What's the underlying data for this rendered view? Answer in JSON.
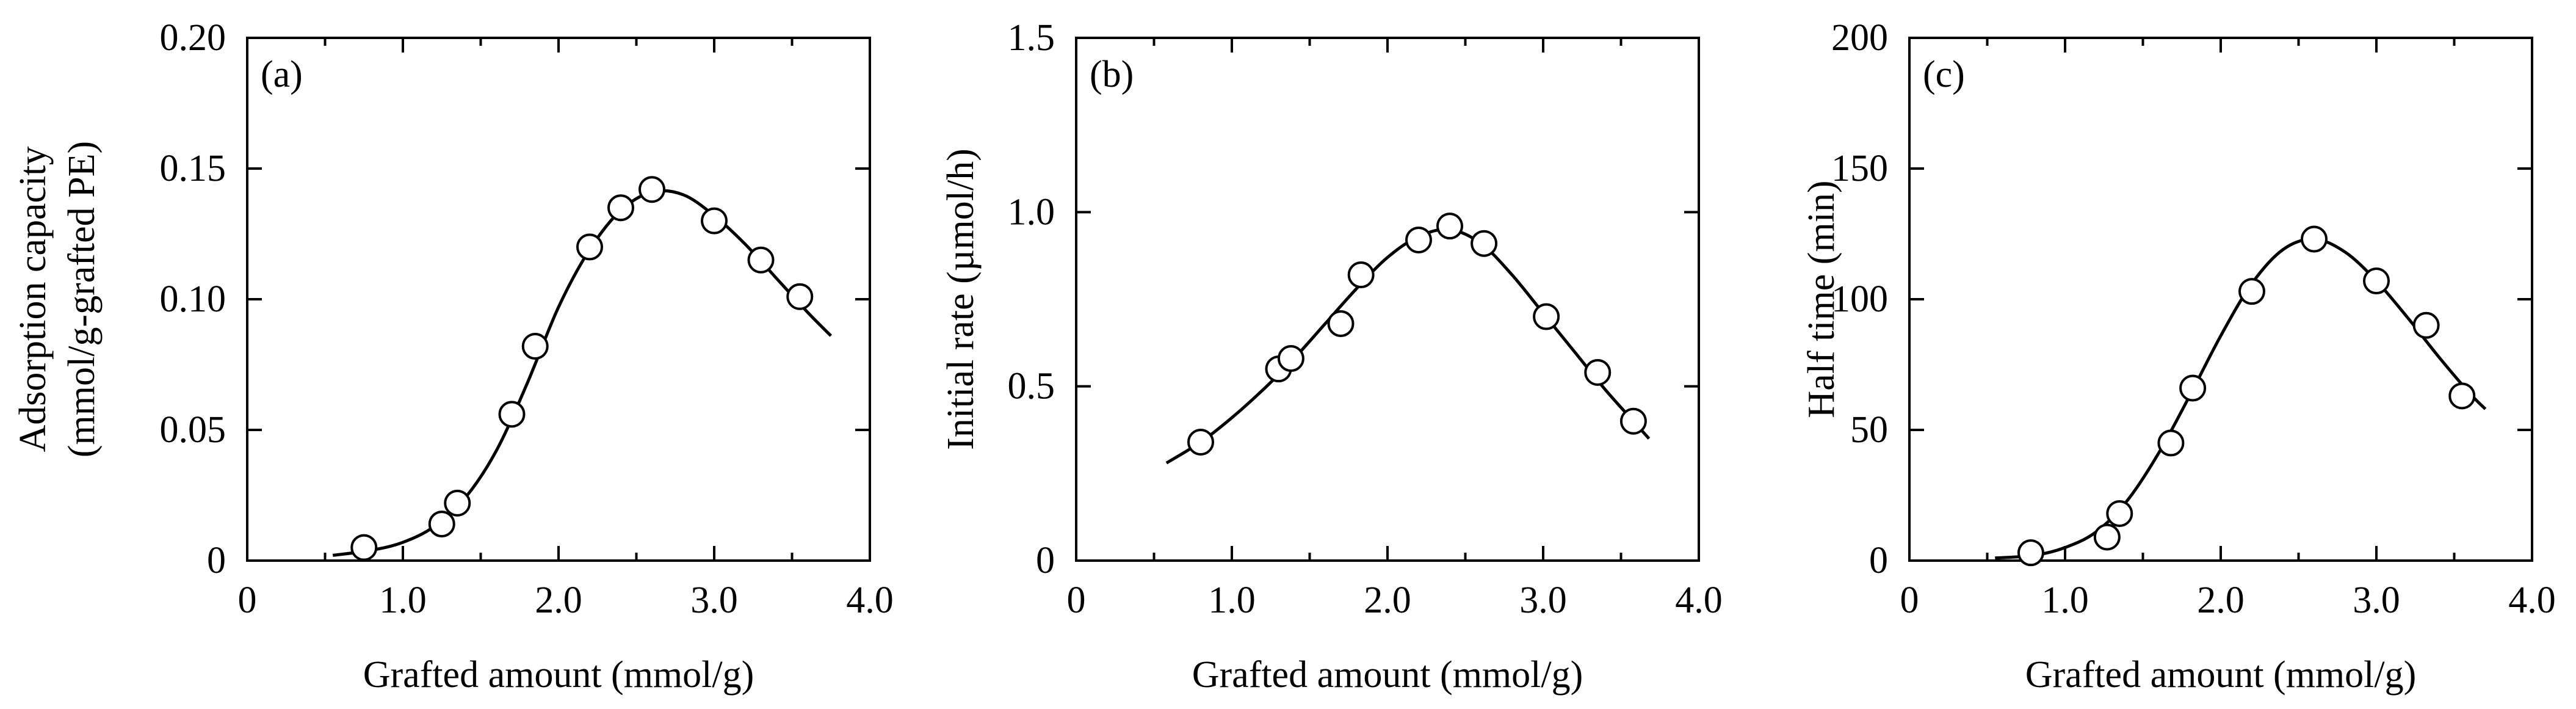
{
  "chart_data": [
    {
      "type": "scatter",
      "panel_label": "(a)",
      "xlabel": "Grafted amount (mmol/g)",
      "ylabel_lines": [
        "Adsorption capacity",
        "(mmol/g-grafted PE)"
      ],
      "xlim": [
        0,
        4.0
      ],
      "ylim": [
        0,
        0.2
      ],
      "x_ticks": [
        "0",
        "1.0",
        "2.0",
        "3.0",
        "4.0"
      ],
      "y_ticks": [
        "0",
        "0.05",
        "0.10",
        "0.15",
        "0.20"
      ],
      "points": {
        "x": [
          0.75,
          1.25,
          1.35,
          1.7,
          1.85,
          2.2,
          2.4,
          2.6,
          3.0,
          3.3,
          3.55
        ],
        "y": [
          0.005,
          0.014,
          0.022,
          0.056,
          0.082,
          0.12,
          0.135,
          0.142,
          0.13,
          0.115,
          0.101
        ]
      },
      "fit_curve": {
        "x": [
          0.55,
          0.8,
          1.0,
          1.2,
          1.4,
          1.6,
          1.8,
          2.0,
          2.2,
          2.4,
          2.6,
          2.8,
          3.0,
          3.2,
          3.4,
          3.6,
          3.75
        ],
        "y": [
          0.002,
          0.004,
          0.007,
          0.013,
          0.024,
          0.042,
          0.068,
          0.097,
          0.119,
          0.134,
          0.141,
          0.14,
          0.132,
          0.121,
          0.108,
          0.095,
          0.086
        ]
      }
    },
    {
      "type": "scatter",
      "panel_label": "(b)",
      "xlabel": "Grafted amount (mmol/g)",
      "ylabel_lines": [
        "Initial rate (µmol/h)"
      ],
      "xlim": [
        0,
        4.0
      ],
      "ylim": [
        0,
        1.5
      ],
      "x_ticks": [
        "0",
        "1.0",
        "2.0",
        "3.0",
        "4.0"
      ],
      "y_ticks": [
        "0",
        "0.5",
        "1.0",
        "1.5"
      ],
      "points": {
        "x": [
          0.8,
          1.3,
          1.38,
          1.7,
          1.83,
          2.2,
          2.4,
          2.62,
          3.02,
          3.35,
          3.58
        ],
        "y": [
          0.34,
          0.55,
          0.58,
          0.68,
          0.82,
          0.92,
          0.96,
          0.91,
          0.7,
          0.54,
          0.4
        ]
      },
      "fit_curve": {
        "x": [
          0.58,
          0.8,
          1.0,
          1.2,
          1.4,
          1.6,
          1.8,
          2.0,
          2.2,
          2.4,
          2.6,
          2.8,
          3.0,
          3.2,
          3.4,
          3.6,
          3.68
        ],
        "y": [
          0.28,
          0.34,
          0.41,
          0.49,
          0.58,
          0.68,
          0.78,
          0.87,
          0.93,
          0.95,
          0.91,
          0.82,
          0.71,
          0.6,
          0.49,
          0.39,
          0.35
        ]
      }
    },
    {
      "type": "scatter",
      "panel_label": "(c)",
      "xlabel": "Grafted amount (mmol/g)",
      "ylabel_lines": [
        "Half time (min)"
      ],
      "xlim": [
        0,
        4.0
      ],
      "ylim": [
        0,
        200
      ],
      "x_ticks": [
        "0",
        "1.0",
        "2.0",
        "3.0",
        "4.0"
      ],
      "y_ticks": [
        "0",
        "50",
        "100",
        "150",
        "200"
      ],
      "points": {
        "x": [
          0.78,
          1.27,
          1.35,
          1.68,
          1.82,
          2.2,
          2.6,
          3.0,
          3.32,
          3.55
        ],
        "y": [
          3,
          9,
          18,
          45,
          66,
          103,
          123,
          107,
          90,
          63
        ]
      },
      "fit_curve": {
        "x": [
          0.55,
          0.8,
          1.0,
          1.2,
          1.4,
          1.6,
          1.8,
          2.0,
          2.2,
          2.4,
          2.6,
          2.8,
          3.0,
          3.2,
          3.4,
          3.6,
          3.7
        ],
        "y": [
          1,
          2,
          5,
          11,
          23,
          41,
          63,
          86,
          106,
          119,
          123,
          118,
          107,
          93,
          78,
          64,
          58
        ]
      }
    }
  ]
}
